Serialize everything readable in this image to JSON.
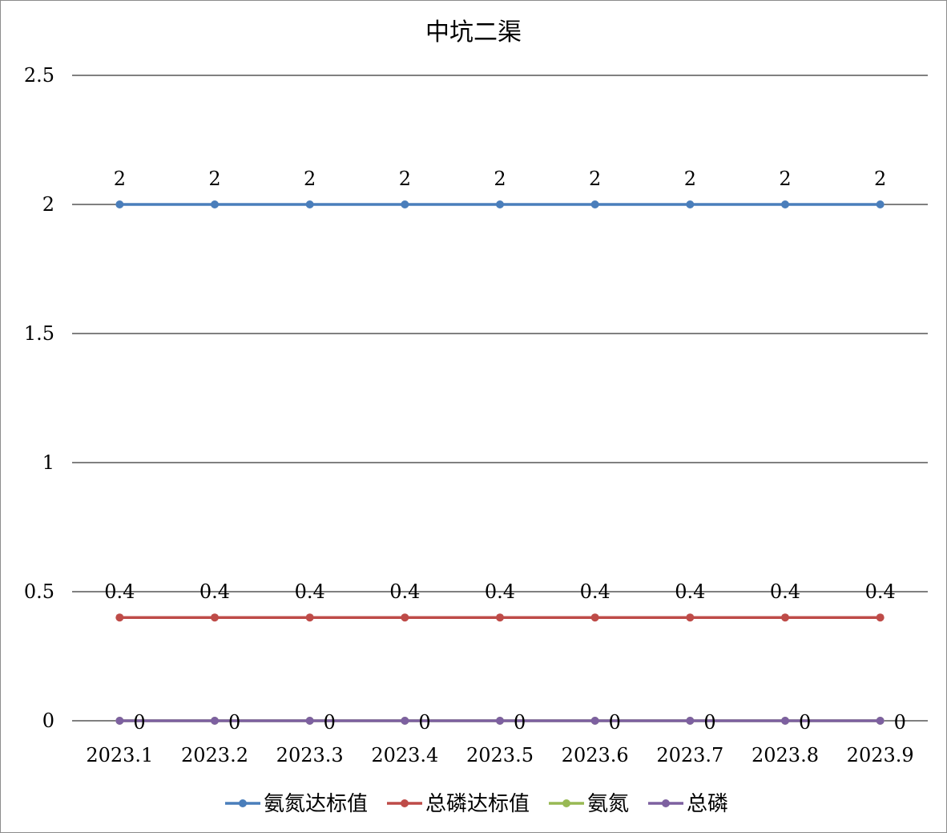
{
  "chart_data": {
    "type": "line",
    "title": "中坑二渠",
    "xlabel": "",
    "ylabel": "",
    "categories": [
      "2023.1",
      "2023.2",
      "2023.3",
      "2023.4",
      "2023.5",
      "2023.6",
      "2023.7",
      "2023.8",
      "2023.9"
    ],
    "ylim": [
      0,
      2.5
    ],
    "yticks": [
      "0",
      "0.5",
      "1",
      "1.5",
      "2",
      "2.5"
    ],
    "yticks_values": [
      0,
      0.5,
      1,
      1.5,
      2,
      2.5
    ],
    "grid": true,
    "legend_position": "bottom",
    "series": [
      {
        "name": "氨氮达标值",
        "color": "#4a7ebb",
        "values": [
          2,
          2,
          2,
          2,
          2,
          2,
          2,
          2,
          2
        ],
        "labels": [
          "2",
          "2",
          "2",
          "2",
          "2",
          "2",
          "2",
          "2",
          "2"
        ],
        "label_position": "above"
      },
      {
        "name": "总磷达标值",
        "color": "#be4b48",
        "values": [
          0.4,
          0.4,
          0.4,
          0.4,
          0.4,
          0.4,
          0.4,
          0.4,
          0.4
        ],
        "labels": [
          "0.4",
          "0.4",
          "0.4",
          "0.4",
          "0.4",
          "0.4",
          "0.4",
          "0.4",
          "0.4"
        ],
        "label_position": "above"
      },
      {
        "name": "氨氮",
        "color": "#98b954",
        "values": [
          0,
          0,
          0,
          0,
          0,
          0,
          0,
          0,
          0
        ],
        "labels": [],
        "label_position": "none"
      },
      {
        "name": "总磷",
        "color": "#7d60a0",
        "values": [
          0,
          0,
          0,
          0,
          0,
          0,
          0,
          0,
          0
        ],
        "labels": [
          "0",
          "0",
          "0",
          "0",
          "0",
          "0",
          "0",
          "0",
          "0"
        ],
        "label_position": "right"
      }
    ]
  }
}
